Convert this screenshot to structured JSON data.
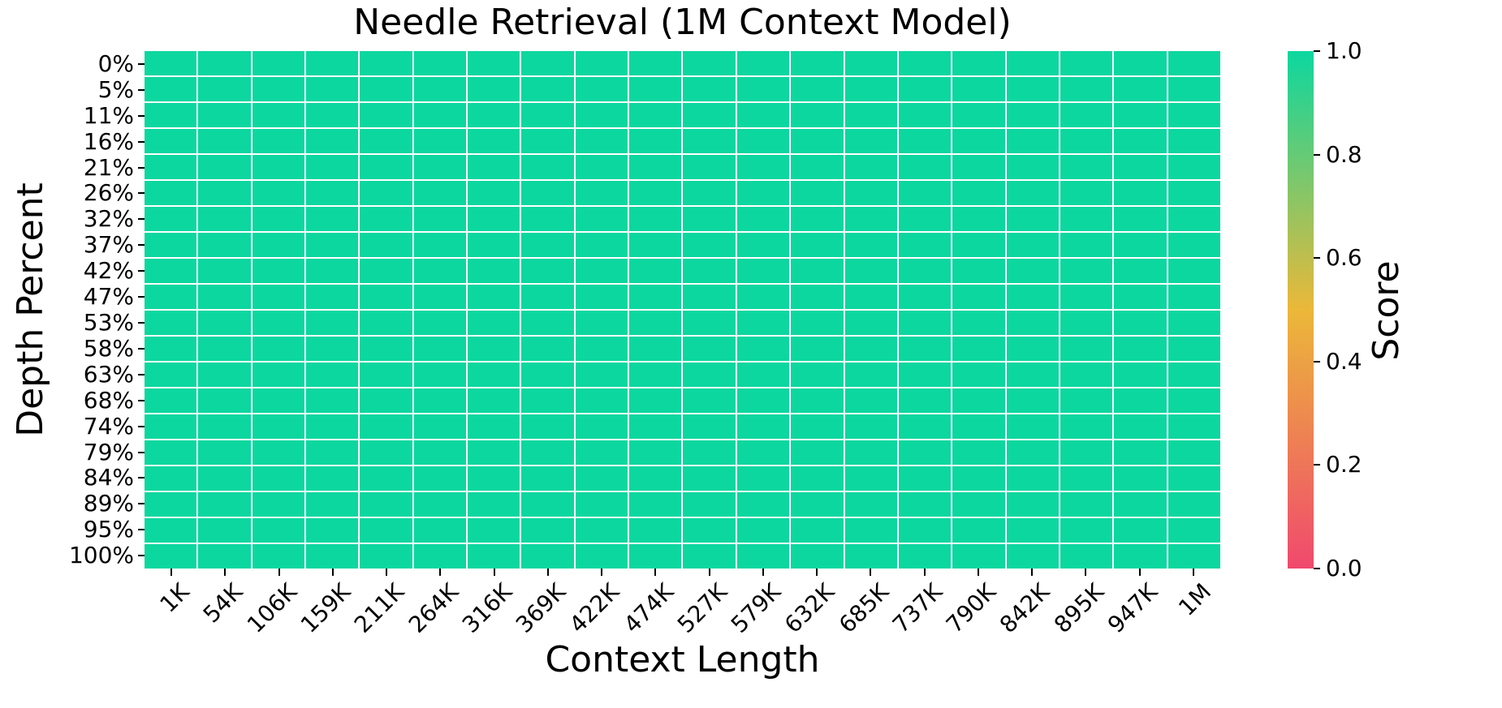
{
  "figure": {
    "background": "#ffffff"
  },
  "chart_data": {
    "type": "heatmap",
    "title": "Needle Retrieval (1M Context Model)",
    "xlabel": "Context Length",
    "ylabel": "Depth Percent",
    "x_categories": [
      "1K",
      "54K",
      "106K",
      "159K",
      "211K",
      "264K",
      "316K",
      "369K",
      "422K",
      "474K",
      "527K",
      "579K",
      "632K",
      "685K",
      "737K",
      "790K",
      "842K",
      "895K",
      "947K",
      "1M"
    ],
    "y_categories": [
      "0%",
      "5%",
      "11%",
      "16%",
      "21%",
      "26%",
      "32%",
      "37%",
      "42%",
      "47%",
      "53%",
      "58%",
      "63%",
      "68%",
      "74%",
      "79%",
      "84%",
      "89%",
      "95%",
      "100%"
    ],
    "rows": [
      [
        1,
        1,
        1,
        1,
        1,
        1,
        1,
        1,
        1,
        1,
        1,
        1,
        1,
        1,
        1,
        1,
        1,
        1,
        1,
        1
      ],
      [
        1,
        1,
        1,
        1,
        1,
        1,
        1,
        1,
        1,
        1,
        1,
        1,
        1,
        1,
        1,
        1,
        1,
        1,
        1,
        1
      ],
      [
        1,
        1,
        1,
        1,
        1,
        1,
        1,
        1,
        1,
        1,
        1,
        1,
        1,
        1,
        1,
        1,
        1,
        1,
        1,
        1
      ],
      [
        1,
        1,
        1,
        1,
        1,
        1,
        1,
        1,
        1,
        1,
        1,
        1,
        1,
        1,
        1,
        1,
        1,
        1,
        1,
        1
      ],
      [
        1,
        1,
        1,
        1,
        1,
        1,
        1,
        1,
        1,
        1,
        1,
        1,
        1,
        1,
        1,
        1,
        1,
        1,
        1,
        1
      ],
      [
        1,
        1,
        1,
        1,
        1,
        1,
        1,
        1,
        1,
        1,
        1,
        1,
        1,
        1,
        1,
        1,
        1,
        1,
        1,
        1
      ],
      [
        1,
        1,
        1,
        1,
        1,
        1,
        1,
        1,
        1,
        1,
        1,
        1,
        1,
        1,
        1,
        1,
        1,
        1,
        1,
        1
      ],
      [
        1,
        1,
        1,
        1,
        1,
        1,
        1,
        1,
        1,
        1,
        1,
        1,
        1,
        1,
        1,
        1,
        1,
        1,
        1,
        1
      ],
      [
        1,
        1,
        1,
        1,
        1,
        1,
        1,
        1,
        1,
        1,
        1,
        1,
        1,
        1,
        1,
        1,
        1,
        1,
        1,
        1
      ],
      [
        1,
        1,
        1,
        1,
        1,
        1,
        1,
        1,
        1,
        1,
        1,
        1,
        1,
        1,
        1,
        1,
        1,
        1,
        1,
        1
      ],
      [
        1,
        1,
        1,
        1,
        1,
        1,
        1,
        1,
        1,
        1,
        1,
        1,
        1,
        1,
        1,
        1,
        1,
        1,
        1,
        1
      ],
      [
        1,
        1,
        1,
        1,
        1,
        1,
        1,
        1,
        1,
        1,
        1,
        1,
        1,
        1,
        1,
        1,
        1,
        1,
        1,
        1
      ],
      [
        1,
        1,
        1,
        1,
        1,
        1,
        1,
        1,
        1,
        1,
        1,
        1,
        1,
        1,
        1,
        1,
        1,
        1,
        1,
        1
      ],
      [
        1,
        1,
        1,
        1,
        1,
        1,
        1,
        1,
        1,
        1,
        1,
        1,
        1,
        1,
        1,
        1,
        1,
        1,
        1,
        1
      ],
      [
        1,
        1,
        1,
        1,
        1,
        1,
        1,
        1,
        1,
        1,
        1,
        1,
        1,
        1,
        1,
        1,
        1,
        1,
        1,
        1
      ],
      [
        1,
        1,
        1,
        1,
        1,
        1,
        1,
        1,
        1,
        1,
        1,
        1,
        1,
        1,
        1,
        1,
        1,
        1,
        1,
        1
      ],
      [
        1,
        1,
        1,
        1,
        1,
        1,
        1,
        1,
        1,
        1,
        1,
        1,
        1,
        1,
        1,
        1,
        1,
        1,
        1,
        1
      ],
      [
        1,
        1,
        1,
        1,
        1,
        1,
        1,
        1,
        1,
        1,
        1,
        1,
        1,
        1,
        1,
        1,
        1,
        1,
        1,
        1
      ],
      [
        1,
        1,
        1,
        1,
        1,
        1,
        1,
        1,
        1,
        1,
        1,
        1,
        1,
        1,
        1,
        1,
        1,
        1,
        1,
        1
      ],
      [
        1,
        1,
        1,
        1,
        1,
        1,
        1,
        1,
        1,
        1,
        1,
        1,
        1,
        1,
        1,
        1,
        1,
        1,
        1,
        1
      ]
    ],
    "uniform_value": 1.0,
    "grid_line_color": "#ffffff",
    "x_tick_rotation_deg": 45,
    "colormap": {
      "stops": [
        {
          "value": 0.0,
          "color": "#F0496E"
        },
        {
          "value": 0.5,
          "color": "#EBB839"
        },
        {
          "value": 1.0,
          "color": "#0CD79F"
        }
      ]
    },
    "colorbar": {
      "label": "Score",
      "min": 0.0,
      "max": 1.0,
      "tick_labels": [
        "1.0",
        "0.8",
        "0.6",
        "0.4",
        "0.2",
        "0.0"
      ],
      "position": "right"
    }
  }
}
